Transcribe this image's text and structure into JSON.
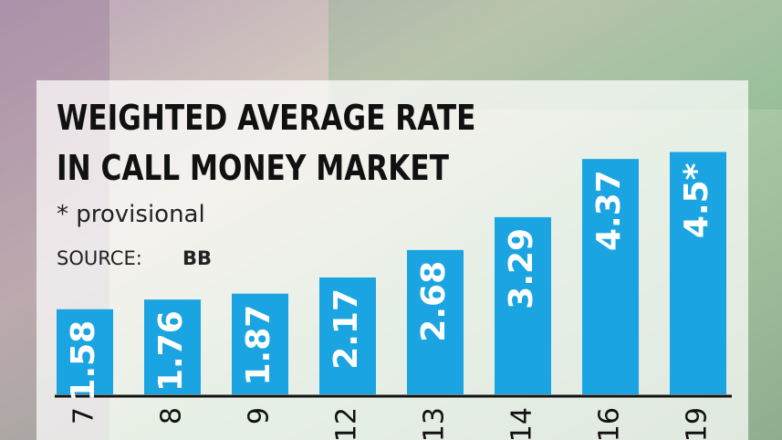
{
  "chart_data": {
    "type": "bar",
    "title": [
      "WEIGHTED AVERAGE RATE",
      "IN CALL MONEY MARKET"
    ],
    "subtitle": "* provisional",
    "source_label": "SOURCE:",
    "source": "BB",
    "categories": [
      "7",
      "8",
      "9",
      "12",
      "13",
      "14",
      "16",
      "19"
    ],
    "values": [
      1.58,
      1.76,
      1.87,
      2.17,
      2.68,
      3.29,
      4.37,
      4.5
    ],
    "value_labels": [
      "1.58",
      "1.76",
      "1.87",
      "2.17",
      "2.68",
      "3.29",
      "4.37",
      "4.5*"
    ],
    "color": "#1ba4e2"
  }
}
